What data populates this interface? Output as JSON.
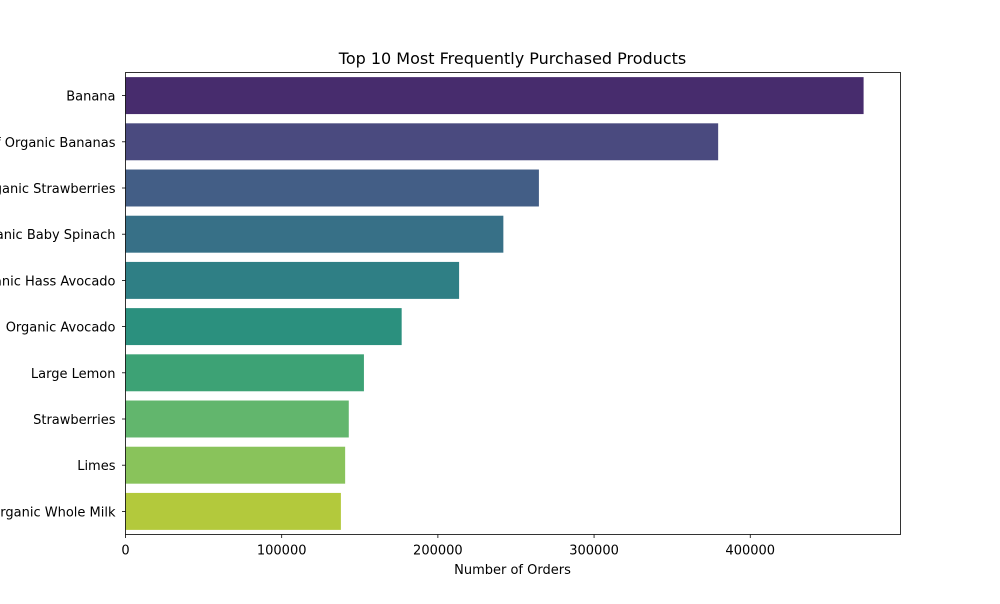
{
  "chart_data": {
    "type": "bar",
    "orientation": "horizontal",
    "title": "Top 10 Most Frequently Purchased Products",
    "xlabel": "Number of Orders",
    "ylabel": "",
    "categories": [
      "Banana",
      "Bag of Organic Bananas",
      "Organic Strawberries",
      "Organic Baby Spinach",
      "Organic Hass Avocado",
      "Organic Avocado",
      "Large Lemon",
      "Strawberries",
      "Limes",
      "Organic Whole Milk"
    ],
    "values": [
      472565,
      379450,
      264683,
      241921,
      213584,
      176815,
      152657,
      142951,
      140627,
      137905
    ],
    "colors": [
      "#472c6d",
      "#4a4a7f",
      "#435e86",
      "#377087",
      "#2f7f85",
      "#2b907e",
      "#3da275",
      "#62b66d",
      "#89c35b",
      "#b3c93c"
    ],
    "xlim": [
      0,
      496193
    ],
    "xticks": [
      0,
      100000,
      200000,
      300000,
      400000
    ],
    "xtick_labels": [
      "0",
      "100000",
      "200000",
      "300000",
      "400000"
    ],
    "grid": false,
    "legend": "none"
  }
}
